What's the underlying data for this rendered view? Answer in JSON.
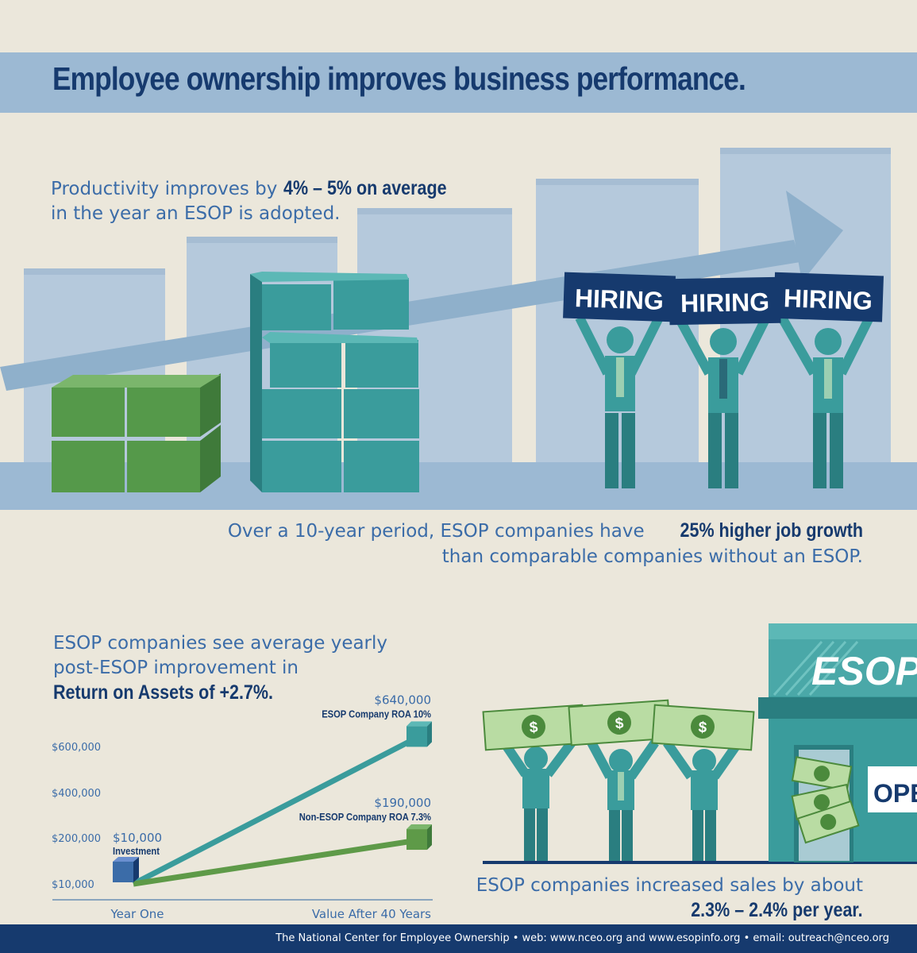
{
  "title": "Employee ownership improves business performance.",
  "productivity": {
    "text_a": "Productivity improves by ",
    "highlight": "4% – 5% on average",
    "text_b": "in the year an ESOP is adopted."
  },
  "hiring": {
    "sign_text": "HIRING"
  },
  "job_growth": {
    "text_a": "Over a 10-year period, ESOP companies have ",
    "highlight": "25% higher job growth",
    "text_b": "than comparable companies without an ESOP."
  },
  "roa": {
    "line1": "ESOP companies see average yearly",
    "line2": "post-ESOP improvement in",
    "highlight": "Return on Assets of +2.7%."
  },
  "chart_data": {
    "type": "line",
    "categories": [
      "Year One",
      "Value After 40 Years"
    ],
    "y_tick_labels": [
      "$10,000",
      "$200,000",
      "$400,000",
      "$600,000"
    ],
    "series": [
      {
        "name": "ESOP Company ROA 10%",
        "values": [
          10000,
          640000
        ],
        "value_label": "$640,000",
        "color": "#3a9c9c"
      },
      {
        "name": "Non-ESOP Company ROA 7.3%",
        "values": [
          10000,
          190000
        ],
        "value_label": "$190,000",
        "color": "#5e9a48"
      }
    ],
    "start_label": "$10,000",
    "start_sublabel": "Investment"
  },
  "sales": {
    "line1": "ESOP companies increased sales by about",
    "highlight": "2.3% – 2.4% per year."
  },
  "store": {
    "sign": "ESOP",
    "open_sign": "OPEN"
  },
  "money_symbol": "$",
  "footer": "The National Center for Employee Ownership  •  web: www.nceo.org and www.esopinfo.org  •  email: outreach@nceo.org",
  "colors": {
    "background": "#ebe7db",
    "title_band": "#9cb9d3",
    "navy": "#163a6e",
    "teal": "#3a9c9c",
    "green": "#5e9a48",
    "light_bar": "#b5c9dc"
  }
}
